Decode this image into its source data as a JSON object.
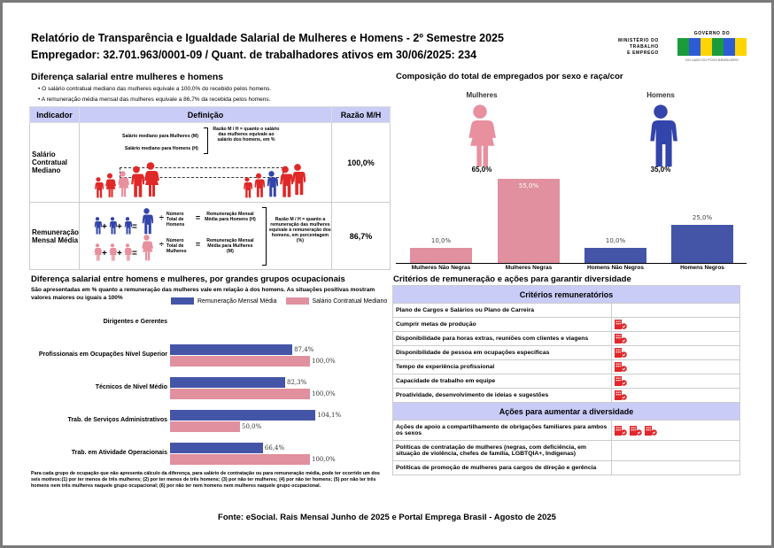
{
  "header": {
    "title_line1": "Relatório de Transparência e Igualdade Salarial de Mulheres e Homens - 2º Semestre 2025",
    "title_line2": "Empregador: 32.701.963/0001-09 / Quant. de trabalhadores ativos em 30/06/2025: 234",
    "ministry": [
      "MINISTÉRIO DO",
      "TRABALHO",
      "E EMPREGO"
    ],
    "gov_top": "GOVERNO DO",
    "gov_brand": "BRASIL",
    "gov_tag": "DO LADO DO POVO BRASILEIRO"
  },
  "salary_diff": {
    "heading": "Diferença salarial entre mulheres e homens",
    "bullets": [
      "O salário contratual mediano das mulheres equivale a 100,0% do recebido pelos homens.",
      "A remuneração média mensal das mulheres equivale a 86,7% da recebida pelos homens."
    ],
    "columns": [
      "Indicador",
      "Definição",
      "Razão M/H"
    ],
    "rows": [
      {
        "indicator": "Salário Contratual Mediano",
        "def_m": "Salário mediano para Mulheres (M)",
        "def_h": "Salário mediano para Homens (H)",
        "def_ratio": "Razão M / H = quanto o salário das mulheres equivale ao salário dos homens, em %",
        "value": "100,0%"
      },
      {
        "indicator": "Remuneração Mensal Média",
        "h_num": "Número Total de Homens",
        "h_res": "Remuneração Mensal Média para Homens (H)",
        "m_num": "Número Total de Mulheres",
        "m_res": "Remuneração Mensal Média para Mulheres (M)",
        "def_ratio": "Razão M / H = quanto a remuneração das mulheres equivale à remuneração dos homens, em porcentagem (%)",
        "value": "86,7%"
      }
    ]
  },
  "composition": {
    "heading": "Composição do total de empregados por sexo e raça/cor",
    "women_label": "Mulheres",
    "men_label": "Homens",
    "women_pct": "65,0%",
    "men_pct": "35,0%"
  },
  "chart_data": [
    {
      "type": "bar",
      "categories": [
        "Mulheres Não Negras",
        "Mulheres Negras",
        "Homens Não Negros",
        "Homens Negros"
      ],
      "values": [
        10.0,
        55.0,
        10.0,
        25.0
      ],
      "labels": [
        "10,0%",
        "55,0%",
        "10,0%",
        "25,0%"
      ],
      "colors": [
        "#e0909e",
        "#e0909e",
        "#4455a8",
        "#4455a8"
      ],
      "grid": false
    },
    {
      "type": "bar",
      "orientation": "horizontal",
      "title": "Diferença salarial entre homens e mulheres, por grandes grupos ocupacionais",
      "subtitle": "São apresentadas em % quanto a remuneração das mulheres vale em relação à dos homens. As situações positivas mostram valores maiores ou iguais a 100%",
      "categories": [
        "Dirigentes e Gerentes",
        "Profissionais em Ocupações Nível Superior",
        "Técnicos de Nível Médio",
        "Trab. de Serviços Administrativos",
        "Trab. em Atividade Operacionais"
      ],
      "series": [
        {
          "name": "Remuneração Mensal Média",
          "color": "#4455a8",
          "values": [
            null,
            87.4,
            82.3,
            104.1,
            66.4
          ],
          "labels": [
            "",
            "87,4%",
            "82,3%",
            "104,1%",
            "66,4%"
          ]
        },
        {
          "name": "Salário Contratual Mediano",
          "color": "#e0909e",
          "values": [
            null,
            100.0,
            100.0,
            50.0,
            100.0
          ],
          "labels": [
            "",
            "100,0%",
            "100,0%",
            "50,0%",
            "100,0%"
          ]
        }
      ],
      "legend": "top",
      "grid": false,
      "footnote": "Para cada grupo de ocupação que não apresenta cálculo da diferença, para salário de contratação ou para remuneração média, pode ter ocorrido um dos seis motivos:(1) por ter menos de três mulheres; (2) por ter menos de três homens; (3) por não ter mulheres; (4) por não ter homens; (5) por não ter três homens nem três mulheres naquele grupo ocupacional; (6) por não ter nem homens nem mulheres naquele grupo ocupacional."
    }
  ],
  "criteria": {
    "heading": "Critérios de remuneração e ações para garantir diversidade",
    "section1": "Critérios remuneratórios",
    "items1": [
      {
        "label": "Plano de Cargos e Salários ou Plano de Carreira",
        "icons": 0
      },
      {
        "label": "Cumprir metas de produção",
        "icons": 1
      },
      {
        "label": "Disponibilidade para horas extras, reuniões com clientes e viagens",
        "icons": 1
      },
      {
        "label": "Disponibilidade de pessoa em ocupações específicas",
        "icons": 1
      },
      {
        "label": "Tempo de experiência profissional",
        "icons": 1
      },
      {
        "label": "Capacidade de trabalho em equipe",
        "icons": 1
      },
      {
        "label": "Proatividade, desenvolvimento de ideias e sugestões",
        "icons": 1
      }
    ],
    "section2": "Ações para aumentar a diversidade",
    "items2": [
      {
        "label": "Ações de apoio a compartilhamento de obrigações familiares para ambos os sexos",
        "icons": 3
      },
      {
        "label": "Políticas de contratação de mulheres (negras, com deficiência, em situação de violência, chefes de família, LGBTQIA+, Indígenas)",
        "icons": 0
      },
      {
        "label": "Políticas de promoção de mulheres para cargos de direção e gerência",
        "icons": 0
      }
    ],
    "icon": "building-check-icon",
    "icon_color": "#e0282c"
  },
  "footer": "Fonte: eSocial. Rais Mensal Junho de 2025 e Portal Emprega Brasil - Agosto de 2025"
}
